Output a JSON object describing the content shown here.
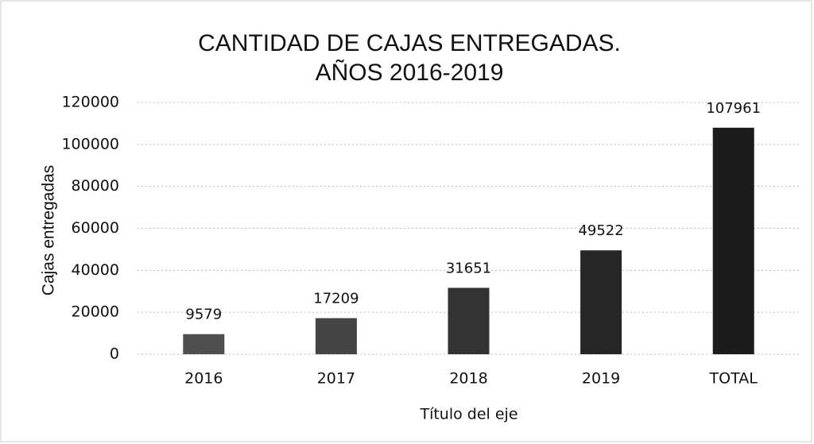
{
  "chart_data": {
    "type": "bar",
    "title": [
      "CANTIDAD DE CAJAS ENTREGADAS.",
      "AÑOS 2016-2019"
    ],
    "y_label": "Cajas entregadas",
    "x_label": "Título del eje",
    "categories": [
      "2016",
      "2017",
      "2018",
      "2019",
      "TOTAL"
    ],
    "values": [
      9579,
      17209,
      31651,
      49522,
      107961
    ],
    "colors": [
      "#4f4f4f",
      "#444444",
      "#333333",
      "#262626",
      "#1c1c1c"
    ],
    "ylim": [
      0,
      120000
    ],
    "yticks": [
      0,
      20000,
      40000,
      60000,
      80000,
      100000,
      120000
    ],
    "grid": true
  }
}
